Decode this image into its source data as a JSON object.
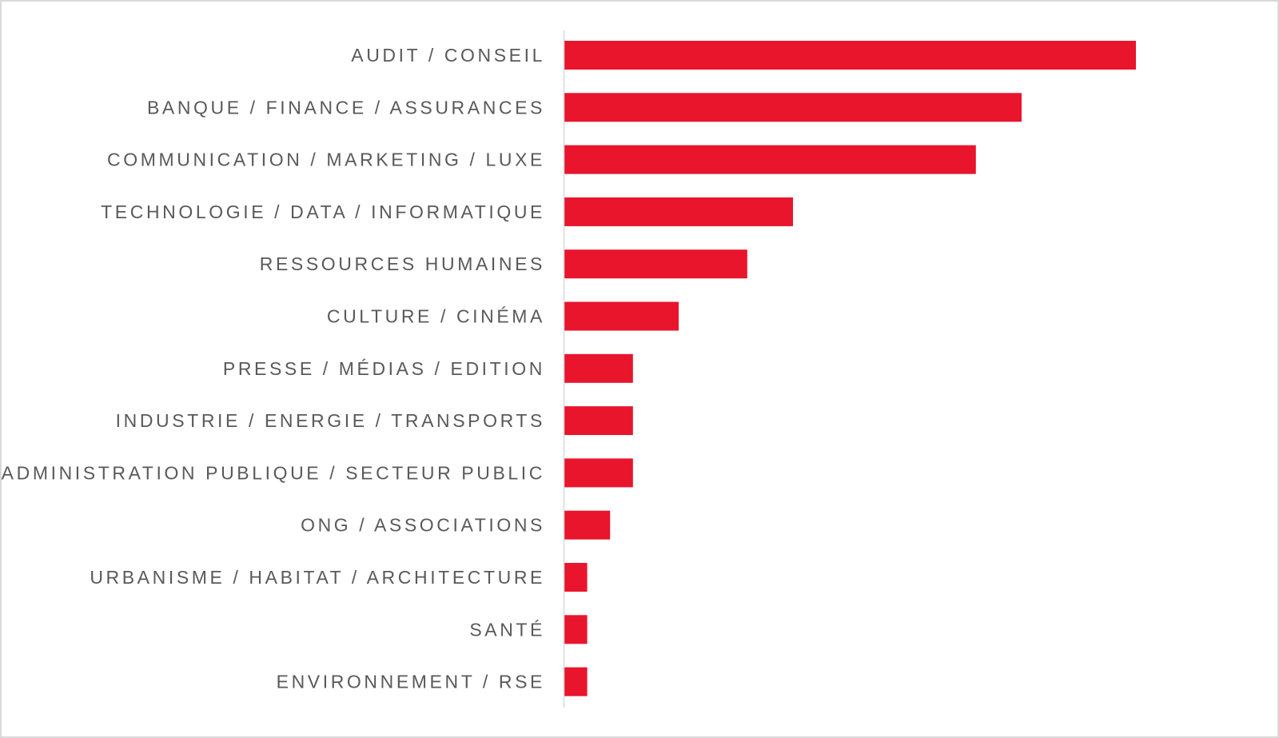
{
  "chart_data": {
    "type": "bar",
    "orientation": "horizontal",
    "title": "",
    "xlabel": "",
    "ylabel": "",
    "categories": [
      "AUDIT / CONSEIL",
      "BANQUE / FINANCE / ASSURANCES",
      "COMMUNICATION / MARKETING / LUXE",
      "TECHNOLOGIE / DATA / INFORMATIQUE",
      "RESSOURCES HUMAINES",
      "CULTURE / CINÉMA",
      "PRESSE / MÉDIAS / EDITION",
      "INDUSTRIE / ENERGIE / TRANSPORTS",
      "ADMINISTRATION PUBLIQUE / SECTEUR PUBLIC",
      "ONG / ASSOCIATIONS",
      "URBANISME / HABITAT / ARCHITECTURE",
      "SANTÉ",
      "ENVIRONNEMENT / RSE"
    ],
    "values": [
      25,
      20,
      18,
      10,
      8,
      5,
      3,
      3,
      3,
      2,
      1,
      1,
      1
    ],
    "xlim": [
      0,
      29
    ],
    "grid": false,
    "legend": "none",
    "bar_color": "#e8152d",
    "axis_color": "#d9d9d9",
    "label_color": "#595959"
  }
}
